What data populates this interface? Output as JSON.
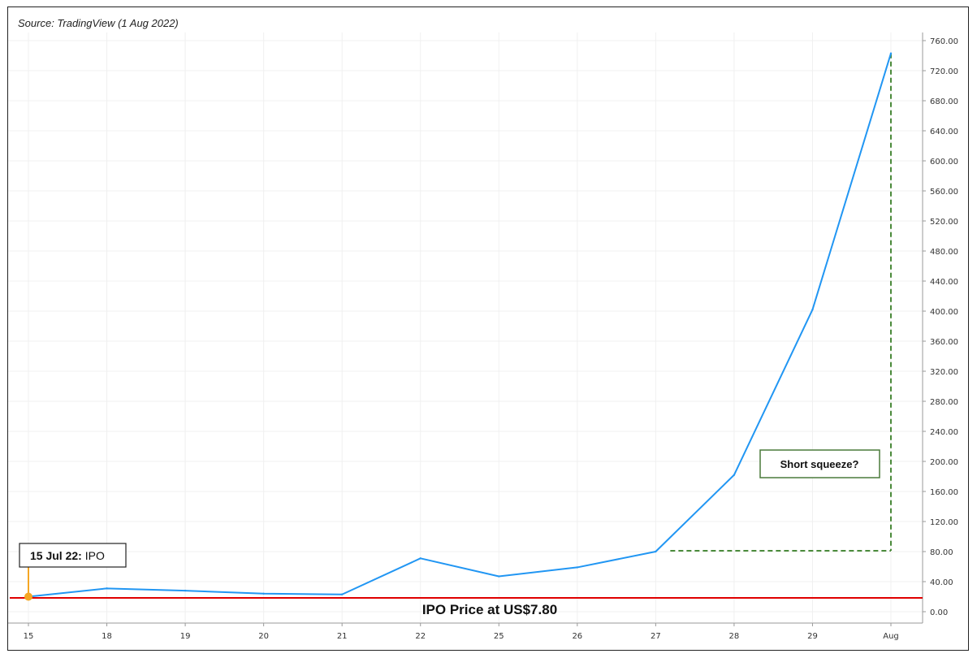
{
  "source": "Source: TradingView (1 Aug 2022)",
  "chart_data": {
    "type": "line",
    "x": [
      "15",
      "18",
      "19",
      "20",
      "21",
      "22",
      "25",
      "26",
      "27",
      "28",
      "29",
      "Aug"
    ],
    "series": [
      {
        "values": [
          20,
          31,
          28,
          24,
          23,
          71,
          47,
          59,
          80,
          182,
          402,
          743
        ]
      }
    ],
    "ylim": [
      0,
      760
    ],
    "yticks": [
      "0.00",
      "40.00",
      "80.00",
      "120.00",
      "160.00",
      "200.00",
      "240.00",
      "280.00",
      "320.00",
      "360.00",
      "400.00",
      "440.00",
      "480.00",
      "520.00",
      "560.00",
      "600.00",
      "640.00",
      "680.00",
      "720.00",
      "760.00"
    ],
    "grid": true,
    "ipo_price": 7.8,
    "colors": {
      "line": "#2196f3",
      "ipo_line": "#e00000",
      "marker": "#f5a623",
      "dashed": "#4a8a3a",
      "callout_border": "#4a7a3a"
    }
  },
  "annotations": {
    "ipo_date_bold": "15 Jul 22:",
    "ipo_date_rest": " IPO",
    "ipo_price_label": "IPO Price at US$7.80",
    "short_squeeze": "Short squeeze?"
  }
}
